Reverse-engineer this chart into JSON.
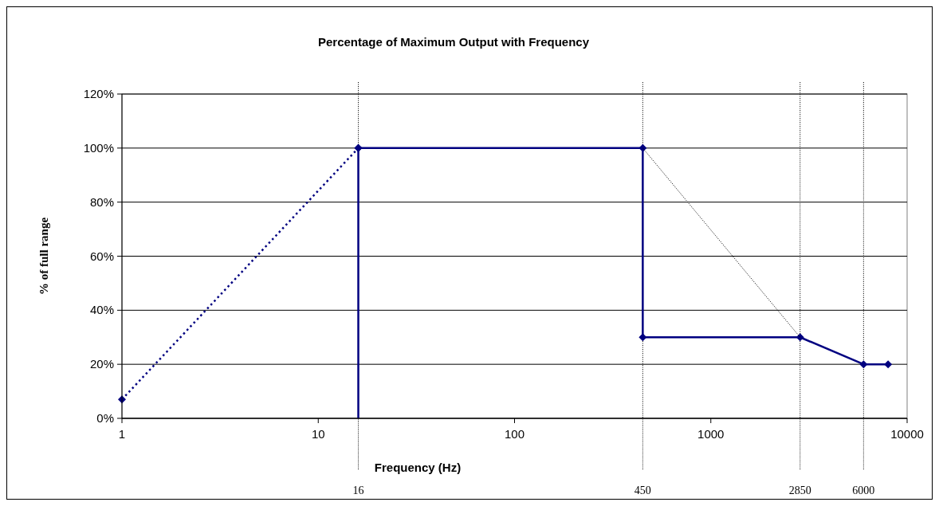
{
  "chart_data": {
    "type": "line",
    "title": "Percentage of Maximum Output with Frequency",
    "xlabel": "Frequency (Hz)",
    "ylabel": "% of full range",
    "log": "x",
    "xlim": [
      1,
      10000
    ],
    "xticks": [
      1,
      10,
      100,
      1000,
      10000
    ],
    "ylim": [
      0,
      120
    ],
    "yticks": [
      {
        "value": 0,
        "label": "0%"
      },
      {
        "value": 20,
        "label": "20%"
      },
      {
        "value": 40,
        "label": "40%"
      },
      {
        "value": 60,
        "label": "60%"
      },
      {
        "value": 80,
        "label": "80%"
      },
      {
        "value": 100,
        "label": "100%"
      },
      {
        "value": 120,
        "label": "120%"
      }
    ],
    "grid": "y",
    "series": [
      {
        "color": "#000080",
        "line_style": "dotted",
        "marker": "diamond",
        "x": [
          1,
          16
        ],
        "values": [
          7,
          100
        ]
      },
      {
        "color": "#000080",
        "line_style": "solid",
        "x": [
          16,
          16
        ],
        "values": [
          0,
          100
        ]
      },
      {
        "color": "#000080",
        "line_style": "solid",
        "marker": "diamond",
        "x": [
          16,
          450,
          450,
          2850,
          6000,
          8000
        ],
        "values": [
          100,
          100,
          30,
          30,
          20,
          20
        ]
      },
      {
        "color": "#000000",
        "line_style": "dotted",
        "x": [
          450,
          2850
        ],
        "values": [
          100,
          30
        ]
      }
    ],
    "ref_lines": [
      {
        "axis": "x",
        "value": 16,
        "label": "16",
        "color": "#000000",
        "line_style": "dotted"
      },
      {
        "axis": "x",
        "value": 450,
        "label": "450",
        "color": "#000000",
        "line_style": "dotted"
      },
      {
        "axis": "x",
        "value": 2850,
        "label": "2850",
        "color": "#000000",
        "line_style": "dotted"
      },
      {
        "axis": "x",
        "value": 6000,
        "label": "6000",
        "color": "#000000",
        "line_style": "dotted"
      }
    ]
  }
}
